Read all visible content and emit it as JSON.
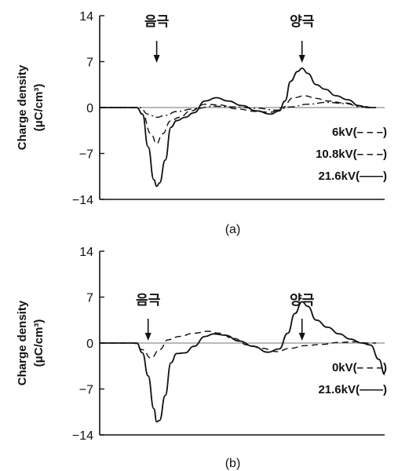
{
  "chart_data": [
    {
      "type": "line",
      "caption": "(a)",
      "ylabel": "Charge density",
      "yunit": "(μC/cm³)",
      "yticks": [
        14,
        7,
        0,
        -7,
        -14
      ],
      "ylim": [
        -14,
        14
      ],
      "xlim": [
        0,
        100
      ],
      "annotations": [
        {
          "text": "음극",
          "x": 20
        },
        {
          "text": "양극",
          "x": 71
        }
      ],
      "series": [
        {
          "name": "6kV(– – –)",
          "style": "dashdot",
          "points": [
            [
              0,
              0
            ],
            [
              14,
              0
            ],
            [
              17,
              -1
            ],
            [
              20,
              -1.5
            ],
            [
              23,
              -1.2
            ],
            [
              27,
              -0.6
            ],
            [
              33,
              -0.2
            ],
            [
              40,
              0.2
            ],
            [
              47,
              0.1
            ],
            [
              55,
              -0.1
            ],
            [
              62,
              -0.4
            ],
            [
              67,
              0.1
            ],
            [
              73,
              0.5
            ],
            [
              80,
              0.8
            ],
            [
              86,
              0.6
            ],
            [
              92,
              0.1
            ],
            [
              95,
              0
            ]
          ]
        },
        {
          "name": "10.8kV(– – –)",
          "style": "dash",
          "points": [
            [
              0,
              0
            ],
            [
              13,
              0
            ],
            [
              15,
              -1
            ],
            [
              18,
              -4
            ],
            [
              20,
              -5.5
            ],
            [
              22,
              -4
            ],
            [
              25,
              -2
            ],
            [
              28,
              -1.5
            ],
            [
              32,
              -0.5
            ],
            [
              37,
              0.5
            ],
            [
              42,
              0.4
            ],
            [
              48,
              -0.2
            ],
            [
              55,
              -0.6
            ],
            [
              60,
              -0.7
            ],
            [
              64,
              0
            ],
            [
              68,
              1.5
            ],
            [
              72,
              1.8
            ],
            [
              76,
              1.4
            ],
            [
              80,
              1
            ],
            [
              86,
              0.7
            ],
            [
              92,
              0.2
            ],
            [
              96,
              0
            ]
          ]
        },
        {
          "name": "21.6kV(——)",
          "style": "solid",
          "points": [
            [
              0,
              0
            ],
            [
              13,
              0
            ],
            [
              15,
              -1
            ],
            [
              17,
              -6
            ],
            [
              19,
              -11
            ],
            [
              20,
              -12
            ],
            [
              21,
              -11.5
            ],
            [
              23,
              -8
            ],
            [
              25,
              -3
            ],
            [
              27,
              -2
            ],
            [
              30,
              -1.5
            ],
            [
              33,
              -0.8
            ],
            [
              37,
              1
            ],
            [
              41,
              1.5
            ],
            [
              45,
              1
            ],
            [
              50,
              0.3
            ],
            [
              55,
              -0.5
            ],
            [
              60,
              -1
            ],
            [
              63,
              -0.5
            ],
            [
              65,
              1
            ],
            [
              67,
              4
            ],
            [
              69.5,
              5.5
            ],
            [
              71,
              6
            ],
            [
              73,
              5.2
            ],
            [
              76,
              3.5
            ],
            [
              79,
              2.8
            ],
            [
              83,
              1.8
            ],
            [
              87,
              1.2
            ],
            [
              91,
              0.3
            ],
            [
              94,
              0
            ],
            [
              97,
              0
            ]
          ]
        }
      ]
    },
    {
      "type": "line",
      "caption": "(b)",
      "ylabel": "Charge density",
      "yunit": "(μC/cm³)",
      "yticks": [
        14,
        7,
        0,
        -7,
        -14
      ],
      "ylim": [
        -14,
        14
      ],
      "xlim": [
        0,
        100
      ],
      "annotations": [
        {
          "text": "음극",
          "x": 17
        },
        {
          "text": "양극",
          "x": 71
        }
      ],
      "series": [
        {
          "name": "0kV(– – –)",
          "style": "dash",
          "points": [
            [
              0,
              0
            ],
            [
              12,
              0
            ],
            [
              15,
              -1
            ],
            [
              18,
              -2.3
            ],
            [
              21,
              -1
            ],
            [
              24,
              0.5
            ],
            [
              28,
              1
            ],
            [
              33,
              1.5
            ],
            [
              38,
              1.8
            ],
            [
              42,
              1.5
            ],
            [
              47,
              0.7
            ],
            [
              52,
              -0.3
            ],
            [
              57,
              -0.8
            ],
            [
              62,
              -1.3
            ],
            [
              67,
              -0.8
            ],
            [
              72,
              -0.4
            ],
            [
              78,
              -0.2
            ],
            [
              84,
              0.1
            ],
            [
              90,
              0.2
            ],
            [
              94,
              0
            ],
            [
              97,
              0
            ]
          ]
        },
        {
          "name": "21.6kV(——)",
          "style": "solid",
          "points": [
            [
              0,
              0
            ],
            [
              13,
              0
            ],
            [
              15,
              -1.5
            ],
            [
              17,
              -5
            ],
            [
              19,
              -10
            ],
            [
              20,
              -12
            ],
            [
              21,
              -11.8
            ],
            [
              23,
              -8
            ],
            [
              25,
              -3
            ],
            [
              27,
              -1.6
            ],
            [
              30,
              -1.5
            ],
            [
              33,
              -0.5
            ],
            [
              37,
              1
            ],
            [
              40,
              1.4
            ],
            [
              44,
              1.2
            ],
            [
              49,
              0.3
            ],
            [
              54,
              -0.5
            ],
            [
              59,
              -1.4
            ],
            [
              63,
              -0.9
            ],
            [
              66,
              1.5
            ],
            [
              68.5,
              4.5
            ],
            [
              71,
              6.3
            ],
            [
              73,
              5.6
            ],
            [
              76,
              3.5
            ],
            [
              80,
              2.4
            ],
            [
              84,
              1.4
            ],
            [
              88,
              0.6
            ],
            [
              92,
              0
            ],
            [
              95,
              -0.3
            ],
            [
              98,
              -2.5
            ],
            [
              100,
              -4.8
            ]
          ]
        }
      ]
    }
  ]
}
